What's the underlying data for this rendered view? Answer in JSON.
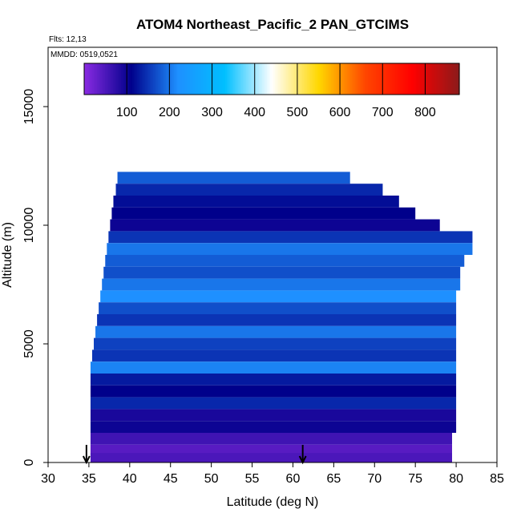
{
  "chart_data": {
    "type": "heatmap",
    "title": "ATOM4 Northeast_Pacific_2 PAN_GTCIMS",
    "subtitle_flights": "Flts: 12,13",
    "subtitle_dates": "MMDD: 0519,0521",
    "xlabel": "Latitude (deg N)",
    "ylabel": "Altitude (m)",
    "xlim": [
      30,
      85
    ],
    "ylim": [
      0,
      17500
    ],
    "x_ticks": [
      "30",
      "35",
      "40",
      "45",
      "50",
      "55",
      "60",
      "65",
      "70",
      "75",
      "80",
      "85"
    ],
    "y_ticks": [
      "0",
      "5000",
      "10000",
      "15000"
    ],
    "colorbar": {
      "range": [
        0,
        880
      ],
      "ticks": [
        "100",
        "200",
        "300",
        "400",
        "500",
        "600",
        "700",
        "800"
      ],
      "colors": [
        "#8a2be2",
        "#00008b",
        "#1e90ff",
        "#00bfff",
        "#ffffff",
        "#ffd700",
        "#ff4500",
        "#ff0000",
        "#8b1a1a"
      ]
    },
    "flight_markers_lat": [
      34.7,
      61.2
    ],
    "layers": [
      {
        "alt": 12000,
        "lat_min": 38.5,
        "lat_max": 67,
        "value": 180
      },
      {
        "alt": 11500,
        "lat_min": 38.3,
        "lat_max": 71,
        "value": 140
      },
      {
        "alt": 11000,
        "lat_min": 38,
        "lat_max": 73,
        "value": 120
      },
      {
        "alt": 10500,
        "lat_min": 37.8,
        "lat_max": 75,
        "value": 110
      },
      {
        "alt": 10000,
        "lat_min": 37.6,
        "lat_max": 78,
        "value": 100
      },
      {
        "alt": 9500,
        "lat_min": 37.4,
        "lat_max": 82,
        "value": 150
      },
      {
        "alt": 9000,
        "lat_min": 37.2,
        "lat_max": 82,
        "value": 200
      },
      {
        "alt": 8500,
        "lat_min": 37,
        "lat_max": 81,
        "value": 180
      },
      {
        "alt": 8000,
        "lat_min": 36.8,
        "lat_max": 80.5,
        "value": 170
      },
      {
        "alt": 7500,
        "lat_min": 36.6,
        "lat_max": 80.5,
        "value": 200
      },
      {
        "alt": 7000,
        "lat_min": 36.4,
        "lat_max": 80,
        "value": 220
      },
      {
        "alt": 6500,
        "lat_min": 36.2,
        "lat_max": 80,
        "value": 170
      },
      {
        "alt": 6000,
        "lat_min": 36,
        "lat_max": 80,
        "value": 150
      },
      {
        "alt": 5500,
        "lat_min": 35.8,
        "lat_max": 80,
        "value": 200
      },
      {
        "alt": 5000,
        "lat_min": 35.6,
        "lat_max": 80,
        "value": 160
      },
      {
        "alt": 4500,
        "lat_min": 35.4,
        "lat_max": 80,
        "value": 150
      },
      {
        "alt": 4000,
        "lat_min": 35.2,
        "lat_max": 80,
        "value": 210
      },
      {
        "alt": 3500,
        "lat_min": 35.2,
        "lat_max": 80,
        "value": 130
      },
      {
        "alt": 3000,
        "lat_min": 35.2,
        "lat_max": 80,
        "value": 110
      },
      {
        "alt": 2500,
        "lat_min": 35.2,
        "lat_max": 80,
        "value": 140
      },
      {
        "alt": 2000,
        "lat_min": 35.2,
        "lat_max": 80,
        "value": 90
      },
      {
        "alt": 1500,
        "lat_min": 35.2,
        "lat_max": 80,
        "value": 100
      },
      {
        "alt": 1000,
        "lat_min": 35.2,
        "lat_max": 79.5,
        "value": 60
      },
      {
        "alt": 500,
        "lat_min": 35.2,
        "lat_max": 79.5,
        "value": 40
      },
      {
        "alt": 150,
        "lat_min": 35.2,
        "lat_max": 79.5,
        "value": 50
      }
    ]
  }
}
